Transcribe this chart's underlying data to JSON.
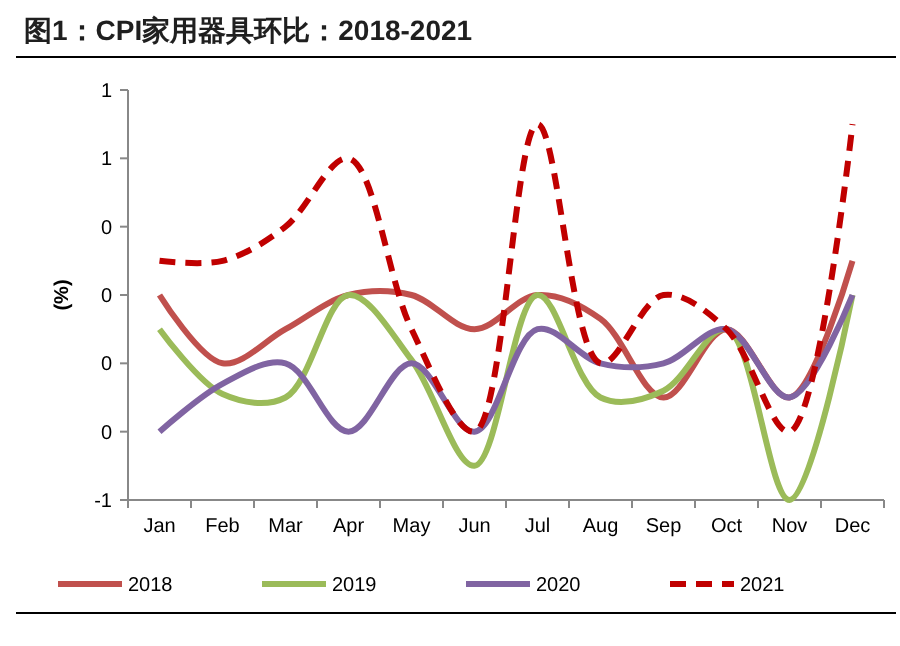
{
  "chart_data": {
    "type": "line",
    "title": "图1：CPI家用器具环比：2018-2021",
    "ylabel": "(%)",
    "categories": [
      "Jan",
      "Feb",
      "Mar",
      "Apr",
      "May",
      "Jun",
      "Jul",
      "Aug",
      "Sep",
      "Oct",
      "Nov",
      "Dec"
    ],
    "series": [
      {
        "name": "2018",
        "color": "#c0504d",
        "line_style": "solid",
        "values": [
          0.1,
          -0.1,
          0.0,
          0.1,
          0.1,
          0.0,
          0.1,
          0.03,
          -0.2,
          0.0,
          -0.2,
          0.2
        ]
      },
      {
        "name": "2019",
        "color": "#9bbb59",
        "line_style": "solid",
        "values": [
          0.0,
          -0.19,
          -0.2,
          0.1,
          -0.09,
          -0.4,
          0.1,
          -0.2,
          -0.18,
          0.0,
          -0.5,
          0.1
        ]
      },
      {
        "name": "2020",
        "color": "#8064a2",
        "line_style": "solid",
        "values": [
          -0.3,
          -0.16,
          -0.1,
          -0.3,
          -0.1,
          -0.3,
          0.0,
          -0.1,
          -0.1,
          0.0,
          -0.2,
          0.1
        ]
      },
      {
        "name": "2021",
        "color": "#c00000",
        "line_style": "dashed",
        "values": [
          0.2,
          0.2,
          0.3,
          0.5,
          0.0,
          -0.3,
          0.6,
          -0.1,
          0.1,
          0.0,
          -0.3,
          0.6
        ]
      }
    ],
    "ylim": [
      -0.5,
      0.7
    ],
    "yticks": [
      {
        "value": -0.5,
        "label": "-1"
      },
      {
        "value": -0.3,
        "label": "0"
      },
      {
        "value": -0.1,
        "label": "0"
      },
      {
        "value": 0.1,
        "label": "0"
      },
      {
        "value": 0.3,
        "label": "0"
      },
      {
        "value": 0.5,
        "label": "1"
      },
      {
        "value": 0.7,
        "label": "1"
      }
    ],
    "grid": false,
    "legend": "bottom",
    "marker": "none"
  }
}
